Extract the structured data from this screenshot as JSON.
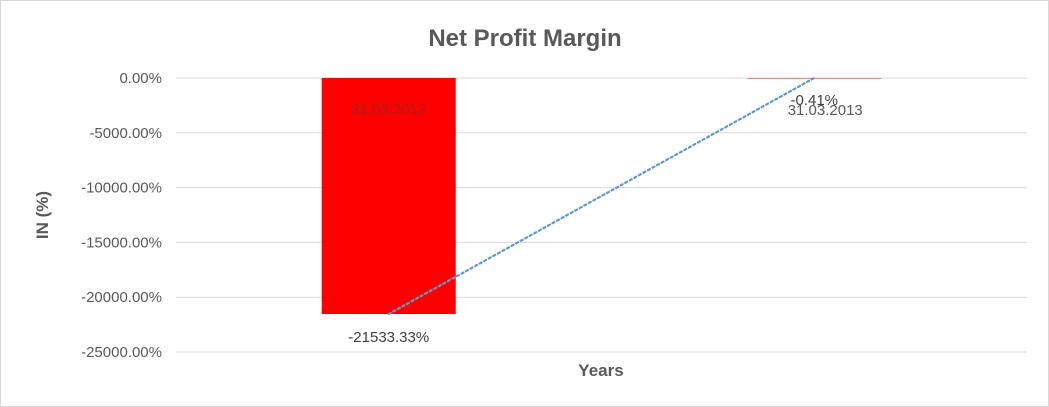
{
  "chart_data": {
    "type": "bar",
    "title": "Net Profit Margin",
    "xlabel": "Years",
    "ylabel": "IN (%)",
    "ylim": [
      -25000,
      0
    ],
    "yticks": [
      0,
      -5000,
      -10000,
      -15000,
      -20000,
      -25000
    ],
    "ytick_labels": [
      "0.00%",
      "-5000.00%",
      "-10000.00%",
      "-15000.00%",
      "-20000.00%",
      "-25000.00%"
    ],
    "categories": [
      "31.03.2012",
      "31.03.2013"
    ],
    "values": [
      -21533.33,
      -0.41
    ],
    "data_labels": [
      "-21533.33%",
      "-0.41%"
    ],
    "grid": true,
    "bar_color": "#ff0000",
    "trendline": {
      "style": "dotted",
      "color": "#5b9bd5"
    }
  }
}
